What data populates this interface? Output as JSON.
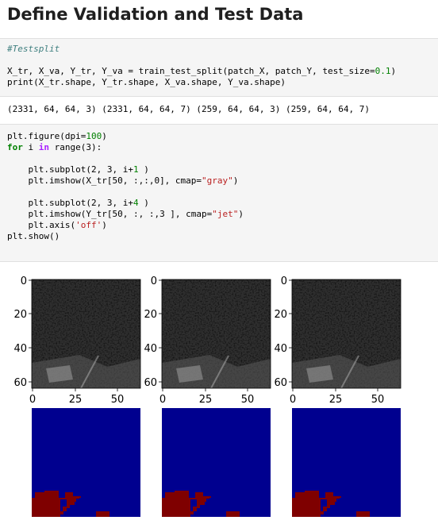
{
  "section": {
    "title": "Define Validation and Test Data"
  },
  "cell1": {
    "comment": "#Testsplit",
    "line1_lhs": "X_tr, X_va, Y_tr, Y_va = train_test_split(patch_X, patch_Y, test_size=",
    "test_size": "0.1",
    "line1_end": ")",
    "line2": "print(X_tr.shape, Y_tr.shape, X_va.shape, Y_va.shape)"
  },
  "output1": {
    "text": "(2331, 64, 64, 3) (2331, 64, 64, 7) (259, 64, 64, 3) (259, 64, 64, 7)"
  },
  "cell2": {
    "l1_a": "plt.figure(dpi=",
    "l1_num": "100",
    "l1_b": ")",
    "l2_kw_for": "for",
    "l2_mid": " i ",
    "l2_kw_in": "in",
    "l2_end": " range(3):",
    "l3_a": "plt.subplot(2, 3, i+",
    "l3_num": "1",
    "l3_b": " )",
    "l4_a": "plt.imshow(X_tr[50, :,:,0], cmap=",
    "l4_str": "\"gray\"",
    "l4_b": ")",
    "l5_a": "plt.subplot(2, 3, i+",
    "l5_num": "4",
    "l5_b": " )",
    "l6_a": "plt.imshow(Y_tr[50, :, :,3 ], cmap=",
    "l6_str": "\"jet\"",
    "l6_b": ")",
    "l7_a": "plt.axis(",
    "l7_str": "'off'",
    "l7_b": ")",
    "l8": "plt.show()"
  },
  "figure": {
    "y_ticks": [
      "0",
      "20",
      "40",
      "60"
    ],
    "x_ticks": [
      "0",
      "25",
      "50"
    ],
    "colors": {
      "mask_background": "#00008f",
      "mask_foreground": "#7f0000"
    }
  }
}
